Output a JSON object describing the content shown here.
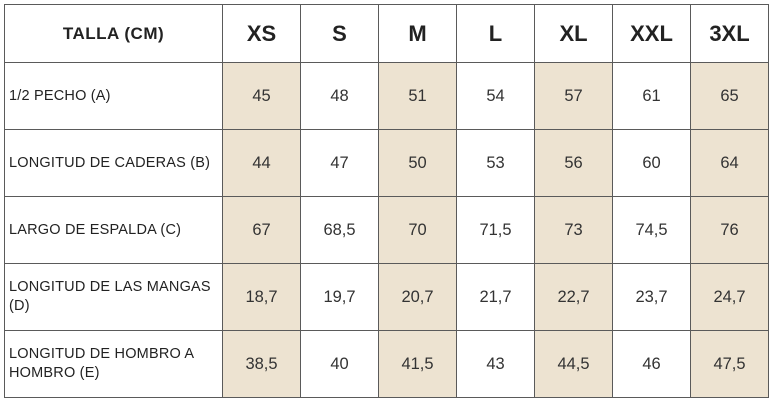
{
  "table": {
    "corner_label": "TALLA (CM)",
    "sizes": [
      "XS",
      "S",
      "M",
      "L",
      "XL",
      "XXL",
      "3XL"
    ],
    "shaded_size_columns": [
      0,
      2,
      4,
      6
    ],
    "shade_color": "#ede3d1",
    "rows": [
      {
        "label": "1/2 PECHO (A)",
        "values": [
          "45",
          "48",
          "51",
          "54",
          "57",
          "61",
          "65"
        ]
      },
      {
        "label": "LONGITUD DE CADERAS (B)",
        "values": [
          "44",
          "47",
          "50",
          "53",
          "56",
          "60",
          "64"
        ]
      },
      {
        "label": "LARGO DE ESPALDA (C)",
        "values": [
          "67",
          "68,5",
          "70",
          "71,5",
          "73",
          "74,5",
          "76"
        ]
      },
      {
        "label": "LONGITUD DE LAS MANGAS (D)",
        "values": [
          "18,7",
          "19,7",
          "20,7",
          "21,7",
          "22,7",
          "23,7",
          "24,7"
        ]
      },
      {
        "label": "LONGITUD DE HOMBRO A HOMBRO (E)",
        "values": [
          "38,5",
          "40",
          "41,5",
          "43",
          "44,5",
          "46",
          "47,5"
        ]
      }
    ]
  }
}
